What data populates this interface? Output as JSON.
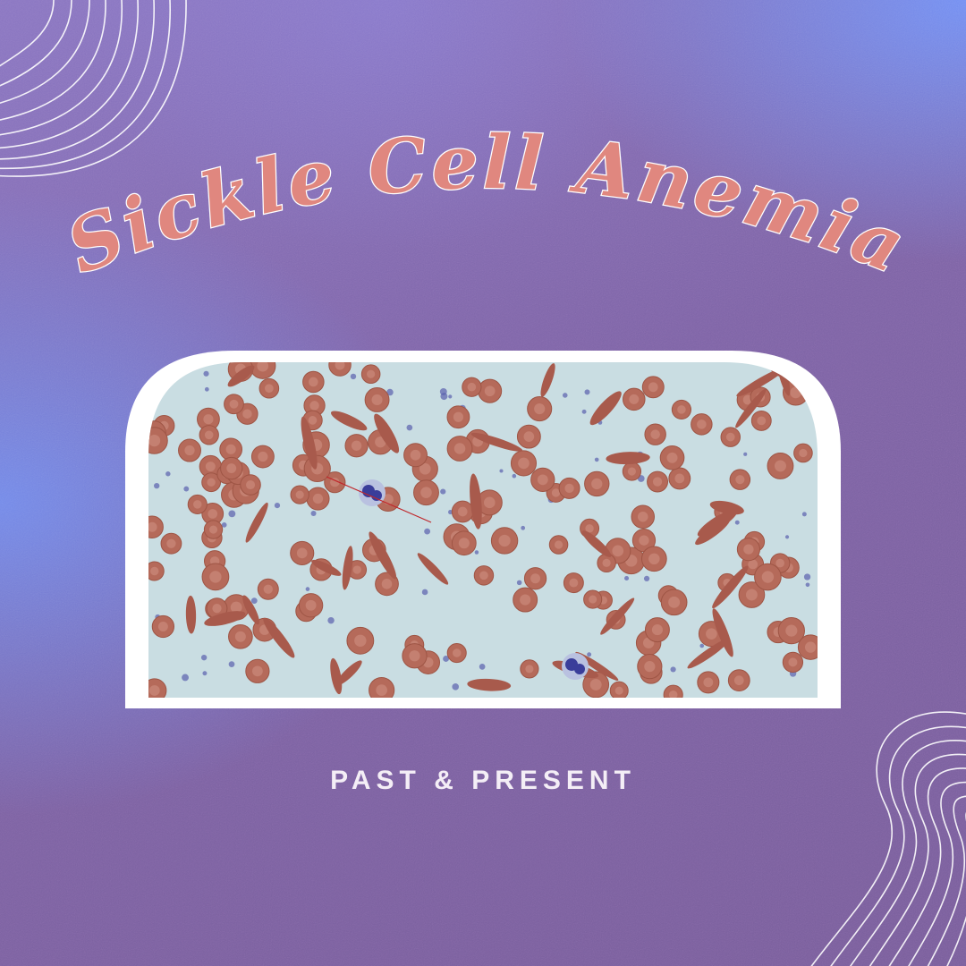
{
  "title": "Sickle Cell Anemia",
  "subtitle": "PAST & PRESENT",
  "colors": {
    "title_fill": "#e0877f",
    "title_outline": "#ffffff",
    "frame": "#ffffff",
    "slide_background": "#c9dde2",
    "rbc": "#b56a5a",
    "rbc_center": "#cf8f80",
    "sickle_cell": "#a85a4c",
    "platelet": "#5a5fae",
    "wbc": "#3a3d9a",
    "pointer_line": "#c0262a"
  },
  "decorations": [
    "concentric-wave-lines-top-left",
    "concentric-wave-lines-bottom-right"
  ],
  "image": {
    "subject": "blood smear micrograph with sickle-shaped red blood cells"
  }
}
